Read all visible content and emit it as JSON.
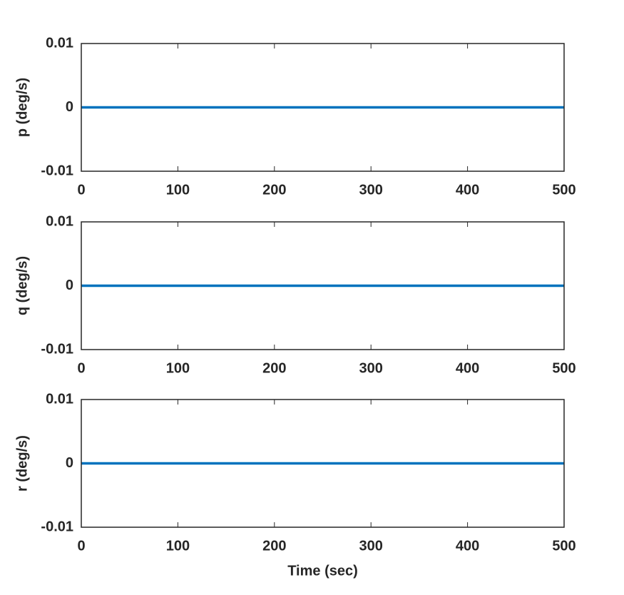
{
  "chart_data": [
    {
      "type": "line",
      "ylabel": "p (deg/s)",
      "x": [
        0,
        500
      ],
      "values": [
        0,
        0
      ],
      "color": "#0072bd",
      "xlim": [
        0,
        500
      ],
      "ylim": [
        -0.01,
        0.01
      ],
      "xticks": [
        0,
        100,
        200,
        300,
        400,
        500
      ],
      "yticks": [
        -0.01,
        0,
        0.01
      ]
    },
    {
      "type": "line",
      "ylabel": "q (deg/s)",
      "x": [
        0,
        500
      ],
      "values": [
        0,
        0
      ],
      "color": "#0072bd",
      "xlim": [
        0,
        500
      ],
      "ylim": [
        -0.01,
        0.01
      ],
      "xticks": [
        0,
        100,
        200,
        300,
        400,
        500
      ],
      "yticks": [
        -0.01,
        0,
        0.01
      ]
    },
    {
      "type": "line",
      "ylabel": "r (deg/s)",
      "xlabel": "Time (sec)",
      "x": [
        0,
        500
      ],
      "values": [
        0,
        0
      ],
      "color": "#0072bd",
      "xlim": [
        0,
        500
      ],
      "ylim": [
        -0.01,
        0.01
      ],
      "xticks": [
        0,
        100,
        200,
        300,
        400,
        500
      ],
      "yticks": [
        -0.01,
        0,
        0.01
      ]
    }
  ]
}
